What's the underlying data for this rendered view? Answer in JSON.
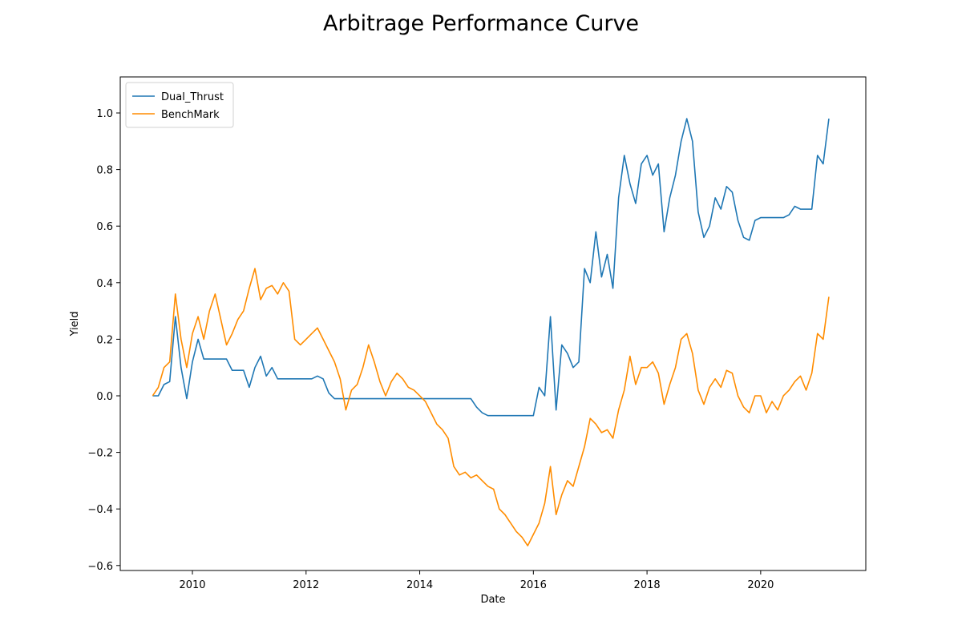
{
  "chart_data": {
    "type": "line",
    "title": "Arbitrage Performance Curve",
    "x_label": "Date",
    "y_label": "Yield",
    "x": [
      2009.3,
      2009.4,
      2009.5,
      2009.6,
      2009.7,
      2009.8,
      2009.9,
      2010.0,
      2010.1,
      2010.2,
      2010.3,
      2010.4,
      2010.5,
      2010.6,
      2010.7,
      2010.8,
      2010.9,
      2011.0,
      2011.1,
      2011.2,
      2011.3,
      2011.4,
      2011.5,
      2011.6,
      2011.7,
      2011.8,
      2011.9,
      2012.0,
      2012.1,
      2012.2,
      2012.3,
      2012.4,
      2012.5,
      2012.6,
      2012.7,
      2012.8,
      2012.9,
      2013.0,
      2013.1,
      2013.2,
      2013.3,
      2013.4,
      2013.5,
      2013.6,
      2013.7,
      2013.8,
      2013.9,
      2014.0,
      2014.1,
      2014.2,
      2014.3,
      2014.4,
      2014.5,
      2014.6,
      2014.7,
      2014.8,
      2014.9,
      2015.0,
      2015.1,
      2015.2,
      2015.3,
      2015.4,
      2015.5,
      2015.6,
      2015.7,
      2015.8,
      2015.9,
      2016.0,
      2016.1,
      2016.2,
      2016.3,
      2016.4,
      2016.5,
      2016.6,
      2016.7,
      2016.8,
      2016.9,
      2017.0,
      2017.1,
      2017.2,
      2017.3,
      2017.4,
      2017.5,
      2017.6,
      2017.7,
      2017.8,
      2017.9,
      2018.0,
      2018.1,
      2018.2,
      2018.3,
      2018.4,
      2018.5,
      2018.6,
      2018.7,
      2018.8,
      2018.9,
      2019.0,
      2019.1,
      2019.2,
      2019.3,
      2019.4,
      2019.5,
      2019.6,
      2019.7,
      2019.8,
      2019.9,
      2020.0,
      2020.1,
      2020.2,
      2020.3,
      2020.4,
      2020.5,
      2020.6,
      2020.7,
      2020.8,
      2020.9,
      2021.0,
      2021.1,
      2021.2
    ],
    "series": [
      {
        "name": "Dual_Thrust",
        "color": "#1f77b4",
        "values": [
          0,
          0,
          0.04,
          0.05,
          0.28,
          0.1,
          -0.01,
          0.12,
          0.2,
          0.13,
          0.13,
          0.13,
          0.13,
          0.13,
          0.09,
          0.09,
          0.09,
          0.03,
          0.1,
          0.14,
          0.07,
          0.1,
          0.06,
          0.06,
          0.06,
          0.06,
          0.06,
          0.06,
          0.06,
          0.07,
          0.06,
          0.01,
          -0.01,
          -0.01,
          -0.01,
          -0.01,
          -0.01,
          -0.01,
          -0.01,
          -0.01,
          -0.01,
          -0.01,
          -0.01,
          -0.01,
          -0.01,
          -0.01,
          -0.01,
          -0.01,
          -0.01,
          -0.01,
          -0.01,
          -0.01,
          -0.01,
          -0.01,
          -0.01,
          -0.01,
          -0.01,
          -0.04,
          -0.06,
          -0.07,
          -0.07,
          -0.07,
          -0.07,
          -0.07,
          -0.07,
          -0.07,
          -0.07,
          -0.07,
          0.03,
          0.0,
          0.28,
          -0.05,
          0.18,
          0.15,
          0.1,
          0.12,
          0.45,
          0.4,
          0.58,
          0.42,
          0.5,
          0.38,
          0.7,
          0.85,
          0.75,
          0.68,
          0.82,
          0.85,
          0.78,
          0.82,
          0.58,
          0.7,
          0.78,
          0.9,
          0.98,
          0.9,
          0.65,
          0.56,
          0.6,
          0.7,
          0.66,
          0.74,
          0.72,
          0.62,
          0.56,
          0.55,
          0.62,
          0.63,
          0.63,
          0.63,
          0.63,
          0.63,
          0.64,
          0.67,
          0.66,
          0.66,
          0.66,
          0.85,
          0.82,
          0.98
        ]
      },
      {
        "name": "BenchMark",
        "color": "#ff8c00",
        "values": [
          0.0,
          0.03,
          0.1,
          0.12,
          0.36,
          0.2,
          0.1,
          0.22,
          0.28,
          0.2,
          0.3,
          0.36,
          0.27,
          0.18,
          0.22,
          0.27,
          0.3,
          0.38,
          0.45,
          0.34,
          0.38,
          0.39,
          0.36,
          0.4,
          0.37,
          0.2,
          0.18,
          0.2,
          0.22,
          0.24,
          0.2,
          0.16,
          0.12,
          0.06,
          -0.05,
          0.02,
          0.04,
          0.1,
          0.18,
          0.12,
          0.05,
          0.0,
          0.05,
          0.08,
          0.06,
          0.03,
          0.02,
          0.0,
          -0.02,
          -0.06,
          -0.1,
          -0.12,
          -0.15,
          -0.25,
          -0.28,
          -0.27,
          -0.29,
          -0.28,
          -0.3,
          -0.32,
          -0.33,
          -0.4,
          -0.42,
          -0.45,
          -0.48,
          -0.5,
          -0.53,
          -0.49,
          -0.45,
          -0.38,
          -0.25,
          -0.42,
          -0.35,
          -0.3,
          -0.32,
          -0.25,
          -0.18,
          -0.08,
          -0.1,
          -0.13,
          -0.12,
          -0.15,
          -0.05,
          0.02,
          0.14,
          0.04,
          0.1,
          0.1,
          0.12,
          0.08,
          -0.03,
          0.04,
          0.1,
          0.2,
          0.22,
          0.15,
          0.02,
          -0.03,
          0.03,
          0.06,
          0.03,
          0.09,
          0.08,
          0.0,
          -0.04,
          -0.06,
          0.0,
          0.0,
          -0.06,
          -0.02,
          -0.05,
          0.0,
          0.02,
          0.05,
          0.07,
          0.02,
          0.08,
          0.22,
          0.2,
          0.35
        ]
      }
    ],
    "xlim": [
      2008.73,
      2021.85
    ],
    "xticks": [
      2010,
      2012,
      2014,
      2016,
      2018,
      2020
    ],
    "ylim": [
      -0.6176,
      1.1275
    ],
    "yticks": [
      {
        "value": -0.6,
        "label": "−0.6"
      },
      {
        "value": -0.4,
        "label": "−0.4"
      },
      {
        "value": -0.2,
        "label": "−0.2"
      },
      {
        "value": 0,
        "label": "0.0"
      },
      0.2,
      0.4,
      0.6,
      0.8,
      {
        "value": 1,
        "label": "1.0"
      }
    ],
    "legend": "upper left",
    "grid": false
  }
}
